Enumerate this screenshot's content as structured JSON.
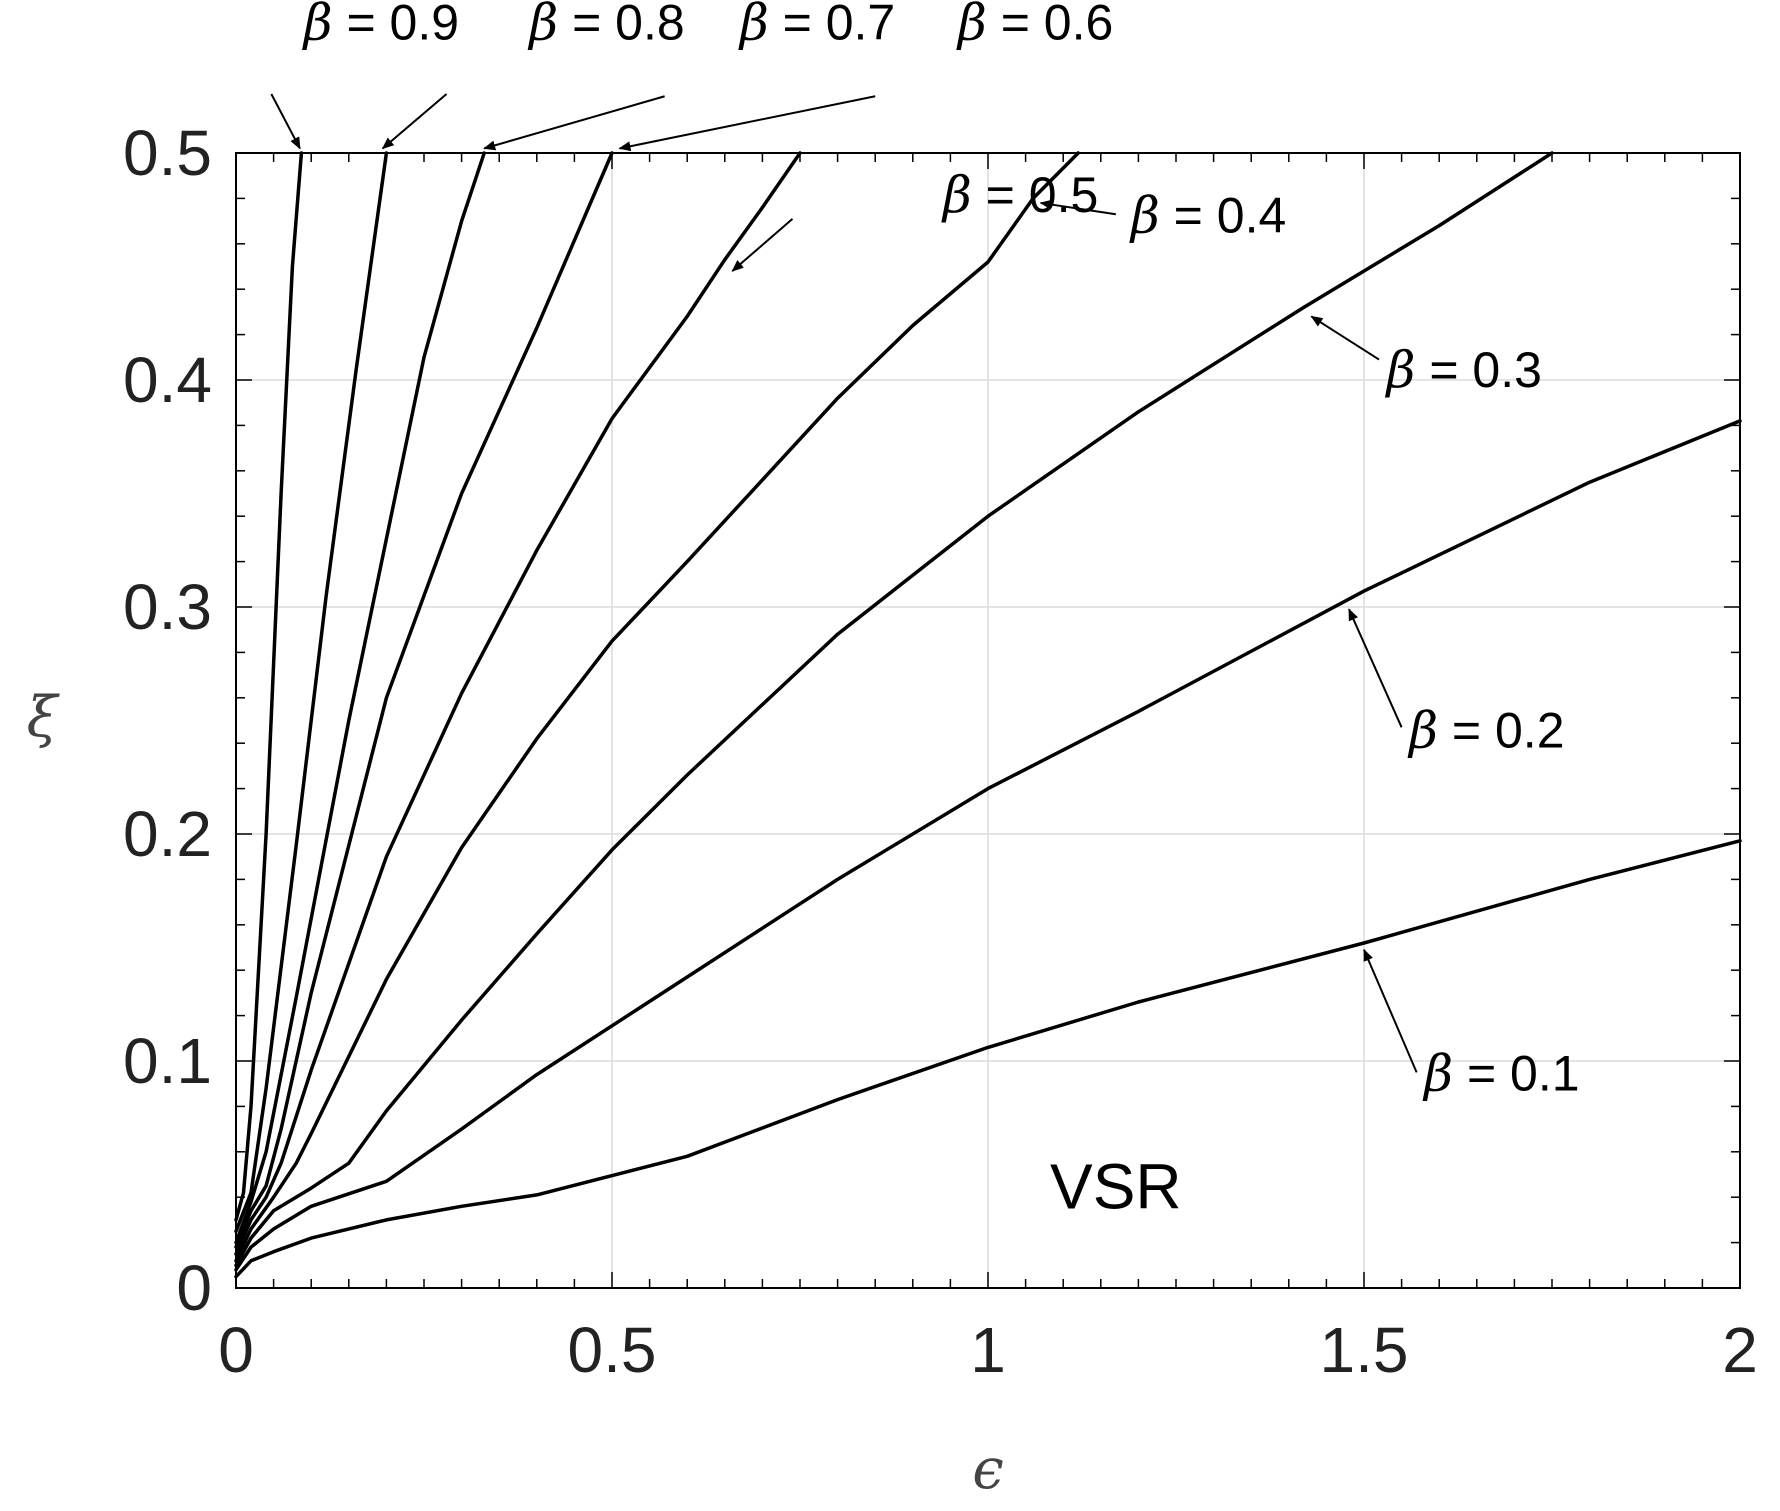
{
  "chart_data": {
    "type": "line",
    "title": "",
    "xlabel": "ϵ",
    "ylabel": "ξ",
    "xlim": [
      0,
      2
    ],
    "ylim": [
      0,
      0.5
    ],
    "x_ticks": [
      "0",
      "0.5",
      "1",
      "1.5",
      "2"
    ],
    "y_ticks": [
      "0",
      "0.1",
      "0.2",
      "0.3",
      "0.4",
      "0.5"
    ],
    "grid": true,
    "legend": "none",
    "line_color": "#000000",
    "annotation_text": "VSR",
    "series": [
      {
        "name": "β = 0.1",
        "points": [
          [
            0,
            0.005
          ],
          [
            0.02,
            0.012
          ],
          [
            0.05,
            0.016
          ],
          [
            0.1,
            0.022
          ],
          [
            0.2,
            0.03
          ],
          [
            0.3,
            0.036
          ],
          [
            0.4,
            0.041
          ],
          [
            0.6,
            0.058
          ],
          [
            0.8,
            0.083
          ],
          [
            1.0,
            0.106
          ],
          [
            1.2,
            0.126
          ],
          [
            1.5,
            0.152
          ],
          [
            1.8,
            0.18
          ],
          [
            2.0,
            0.197
          ]
        ]
      },
      {
        "name": "β = 0.2",
        "points": [
          [
            0,
            0.008
          ],
          [
            0.02,
            0.018
          ],
          [
            0.05,
            0.026
          ],
          [
            0.1,
            0.036
          ],
          [
            0.2,
            0.047
          ],
          [
            0.3,
            0.07
          ],
          [
            0.4,
            0.094
          ],
          [
            0.6,
            0.137
          ],
          [
            0.8,
            0.18
          ],
          [
            1.0,
            0.22
          ],
          [
            1.2,
            0.254
          ],
          [
            1.5,
            0.307
          ],
          [
            1.8,
            0.355
          ],
          [
            2.0,
            0.382
          ]
        ]
      },
      {
        "name": "β = 0.3",
        "points": [
          [
            0,
            0.01
          ],
          [
            0.02,
            0.022
          ],
          [
            0.05,
            0.034
          ],
          [
            0.1,
            0.044
          ],
          [
            0.15,
            0.055
          ],
          [
            0.2,
            0.078
          ],
          [
            0.3,
            0.118
          ],
          [
            0.4,
            0.156
          ],
          [
            0.5,
            0.193
          ],
          [
            0.6,
            0.226
          ],
          [
            0.8,
            0.288
          ],
          [
            1.0,
            0.34
          ],
          [
            1.2,
            0.386
          ],
          [
            1.42,
            0.432
          ],
          [
            1.6,
            0.468
          ],
          [
            1.75,
            0.5
          ]
        ]
      },
      {
        "name": "β = 0.4",
        "points": [
          [
            0,
            0.012
          ],
          [
            0.02,
            0.026
          ],
          [
            0.05,
            0.04
          ],
          [
            0.08,
            0.055
          ],
          [
            0.1,
            0.068
          ],
          [
            0.2,
            0.136
          ],
          [
            0.3,
            0.194
          ],
          [
            0.4,
            0.242
          ],
          [
            0.5,
            0.285
          ],
          [
            0.6,
            0.32
          ],
          [
            0.7,
            0.356
          ],
          [
            0.8,
            0.392
          ],
          [
            0.9,
            0.424
          ],
          [
            1.0,
            0.452
          ],
          [
            1.06,
            0.48
          ],
          [
            1.12,
            0.5
          ]
        ]
      },
      {
        "name": "β = 0.5",
        "points": [
          [
            0,
            0.015
          ],
          [
            0.02,
            0.03
          ],
          [
            0.04,
            0.04
          ],
          [
            0.06,
            0.055
          ],
          [
            0.1,
            0.096
          ],
          [
            0.2,
            0.19
          ],
          [
            0.3,
            0.262
          ],
          [
            0.4,
            0.325
          ],
          [
            0.5,
            0.383
          ],
          [
            0.6,
            0.428
          ],
          [
            0.65,
            0.453
          ],
          [
            0.7,
            0.476
          ],
          [
            0.75,
            0.5
          ]
        ]
      },
      {
        "name": "β = 0.6",
        "points": [
          [
            0,
            0.018
          ],
          [
            0.02,
            0.034
          ],
          [
            0.04,
            0.045
          ],
          [
            0.06,
            0.07
          ],
          [
            0.1,
            0.13
          ],
          [
            0.2,
            0.26
          ],
          [
            0.3,
            0.35
          ],
          [
            0.4,
            0.423
          ],
          [
            0.5,
            0.5
          ]
        ]
      },
      {
        "name": "β = 0.7",
        "points": [
          [
            0,
            0.02
          ],
          [
            0.02,
            0.038
          ],
          [
            0.04,
            0.06
          ],
          [
            0.08,
            0.128
          ],
          [
            0.15,
            0.25
          ],
          [
            0.2,
            0.33
          ],
          [
            0.25,
            0.41
          ],
          [
            0.3,
            0.47
          ],
          [
            0.33,
            0.5
          ]
        ]
      },
      {
        "name": "β = 0.8",
        "points": [
          [
            0,
            0.025
          ],
          [
            0.02,
            0.042
          ],
          [
            0.04,
            0.088
          ],
          [
            0.08,
            0.195
          ],
          [
            0.12,
            0.305
          ],
          [
            0.16,
            0.405
          ],
          [
            0.2,
            0.5
          ]
        ]
      },
      {
        "name": "β = 0.9",
        "points": [
          [
            0,
            0.03
          ],
          [
            0.01,
            0.042
          ],
          [
            0.02,
            0.08
          ],
          [
            0.04,
            0.2
          ],
          [
            0.06,
            0.35
          ],
          [
            0.075,
            0.45
          ],
          [
            0.087,
            0.5
          ]
        ]
      }
    ],
    "labels": [
      {
        "beta": "β",
        "value": " = 0.9",
        "x": 0.09,
        "y": 0.55
      },
      {
        "beta": "β",
        "value": " = 0.8",
        "x": 0.39,
        "y": 0.55
      },
      {
        "beta": "β",
        "value": " = 0.7",
        "x": 0.67,
        "y": 0.55
      },
      {
        "beta": "β",
        "value": " = 0.6",
        "x": 0.96,
        "y": 0.55
      },
      {
        "beta": "β",
        "value": " = 0.5",
        "x": 0.94,
        "y": 0.474
      },
      {
        "beta": "β",
        "value": " = 0.4",
        "x": 1.19,
        "y": 0.465
      },
      {
        "beta": "β",
        "value": " = 0.3",
        "x": 1.53,
        "y": 0.397
      },
      {
        "beta": "β",
        "value": " = 0.2",
        "x": 1.56,
        "y": 0.238
      },
      {
        "beta": "β",
        "value": " = 0.1",
        "x": 1.58,
        "y": 0.087
      }
    ],
    "arrows": [
      {
        "from": [
          0.047,
          0.526
        ],
        "to": [
          0.085,
          0.502
        ]
      },
      {
        "from": [
          0.28,
          0.526
        ],
        "to": [
          0.195,
          0.502
        ]
      },
      {
        "from": [
          0.57,
          0.525
        ],
        "to": [
          0.33,
          0.502
        ]
      },
      {
        "from": [
          0.85,
          0.525
        ],
        "to": [
          0.51,
          0.502
        ]
      },
      {
        "from": [
          0.74,
          0.471
        ],
        "to": [
          0.66,
          0.448
        ]
      },
      {
        "from": [
          1.17,
          0.473
        ],
        "to": [
          1.07,
          0.478
        ]
      },
      {
        "from": [
          1.52,
          0.409
        ],
        "to": [
          1.43,
          0.428
        ]
      },
      {
        "from": [
          1.55,
          0.247
        ],
        "to": [
          1.48,
          0.299
        ]
      },
      {
        "from": [
          1.57,
          0.095
        ],
        "to": [
          1.5,
          0.149
        ]
      }
    ]
  }
}
